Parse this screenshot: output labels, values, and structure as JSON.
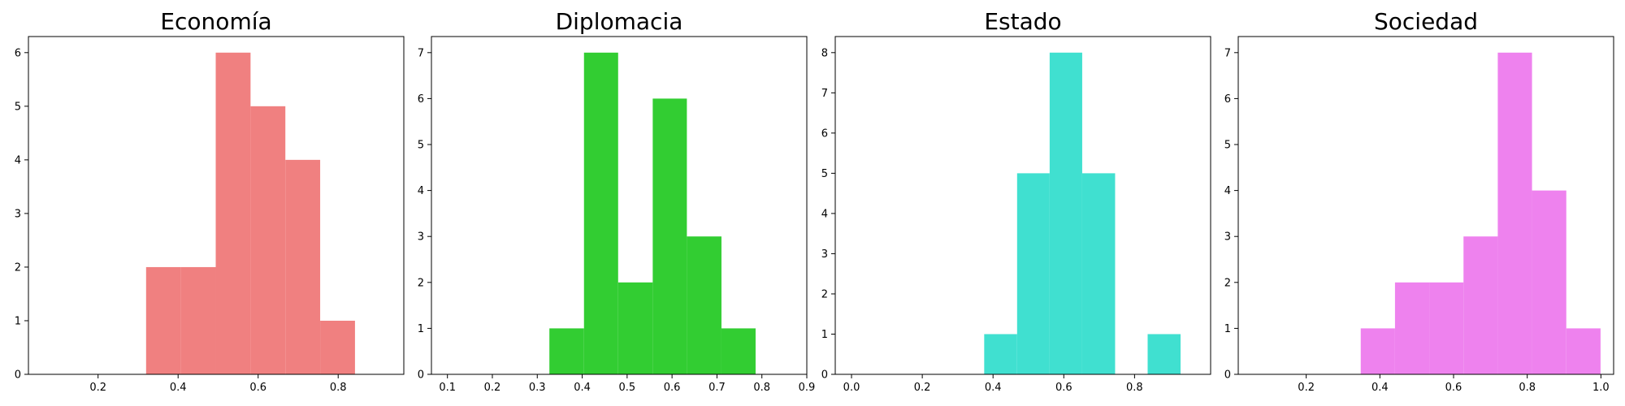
{
  "chart_data": [
    {
      "type": "bar",
      "title": "Economía",
      "color": "#F08080",
      "xlim": [
        0.026,
        0.964
      ],
      "ylim": [
        0,
        6.3
      ],
      "xticks": [
        "0.2",
        "0.4",
        "0.6",
        "0.8"
      ],
      "yticks": [
        "0",
        "1",
        "2",
        "3",
        "4",
        "5",
        "6"
      ],
      "bins": [
        {
          "x0": 0.32,
          "x1": 0.407,
          "value": 2
        },
        {
          "x0": 0.407,
          "x1": 0.494,
          "value": 2
        },
        {
          "x0": 0.494,
          "x1": 0.581,
          "value": 6
        },
        {
          "x0": 0.581,
          "x1": 0.668,
          "value": 5
        },
        {
          "x0": 0.668,
          "x1": 0.755,
          "value": 4
        },
        {
          "x0": 0.755,
          "x1": 0.842,
          "value": 1
        }
      ]
    },
    {
      "type": "bar",
      "title": "Diplomacia",
      "color": "#32CD32",
      "xlim": [
        0.0644,
        0.9
      ],
      "ylim": [
        0,
        7.35
      ],
      "xticks": [
        "0.1",
        "0.2",
        "0.3",
        "0.4",
        "0.5",
        "0.6",
        "0.7",
        "0.8",
        "0.9"
      ],
      "yticks": [
        "0",
        "1",
        "2",
        "3",
        "4",
        "5",
        "6",
        "7"
      ],
      "bins": [
        {
          "x0": 0.327,
          "x1": 0.404,
          "value": 1
        },
        {
          "x0": 0.404,
          "x1": 0.48,
          "value": 7
        },
        {
          "x0": 0.48,
          "x1": 0.557,
          "value": 2
        },
        {
          "x0": 0.557,
          "x1": 0.633,
          "value": 6
        },
        {
          "x0": 0.633,
          "x1": 0.71,
          "value": 3
        },
        {
          "x0": 0.71,
          "x1": 0.786,
          "value": 1
        }
      ]
    },
    {
      "type": "bar",
      "title": "Estado",
      "color": "#40E0D0",
      "xlim": [
        -0.046,
        1.015
      ],
      "ylim": [
        0,
        8.4
      ],
      "xticks": [
        "0.0",
        "0.2",
        "0.4",
        "0.6",
        "0.8"
      ],
      "yticks": [
        "0",
        "1",
        "2",
        "3",
        "4",
        "5",
        "6",
        "7",
        "8"
      ],
      "bins": [
        {
          "x0": 0.375,
          "x1": 0.468,
          "value": 1
        },
        {
          "x0": 0.468,
          "x1": 0.56,
          "value": 5
        },
        {
          "x0": 0.56,
          "x1": 0.652,
          "value": 8
        },
        {
          "x0": 0.652,
          "x1": 0.745,
          "value": 5
        },
        {
          "x0": 0.745,
          "x1": 0.837,
          "value": 0
        },
        {
          "x0": 0.837,
          "x1": 0.93,
          "value": 1
        }
      ]
    },
    {
      "type": "bar",
      "title": "Sociedad",
      "color": "#EE82EE",
      "xlim": [
        0.0155,
        1.0345
      ],
      "ylim": [
        0,
        7.35
      ],
      "xticks": [
        "0.2",
        "0.4",
        "0.6",
        "0.8",
        "1.0"
      ],
      "yticks": [
        "0",
        "1",
        "2",
        "3",
        "4",
        "5",
        "6",
        "7"
      ],
      "bins": [
        {
          "x0": 0.348,
          "x1": 0.441,
          "value": 1
        },
        {
          "x0": 0.441,
          "x1": 0.534,
          "value": 2
        },
        {
          "x0": 0.534,
          "x1": 0.627,
          "value": 2
        },
        {
          "x0": 0.627,
          "x1": 0.72,
          "value": 3
        },
        {
          "x0": 0.72,
          "x1": 0.813,
          "value": 7
        },
        {
          "x0": 0.813,
          "x1": 0.906,
          "value": 4
        },
        {
          "x0": 0.906,
          "x1": 0.999,
          "value": 1
        }
      ]
    }
  ]
}
